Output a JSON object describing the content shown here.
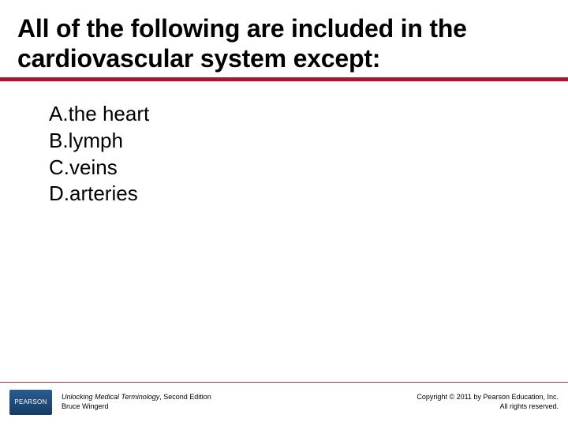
{
  "slide": {
    "title": "All of the following are included in the cardiovascular system except:",
    "title_fontsize": 32,
    "title_color": "#000000",
    "underline_color": "#9e1b32",
    "background_color": "#ffffff"
  },
  "answers": {
    "items": [
      {
        "label": "A.",
        "text": "the heart"
      },
      {
        "label": "B.",
        "text": "lymph"
      },
      {
        "label": "C.",
        "text": "veins"
      },
      {
        "label": "D.",
        "text": "arteries"
      }
    ],
    "fontsize": 26,
    "color": "#000000"
  },
  "footer": {
    "rule_color": "#5b2a2a",
    "logo_text": "PEARSON",
    "logo_bg_from": "#2b5b8f",
    "logo_bg_to": "#163c63",
    "book_title": "Unlocking Medical Terminology",
    "book_edition": ", Second Edition",
    "author": "Bruce Wingerd",
    "copyright_line1": "Copyright © 2011 by Pearson Education, Inc.",
    "copyright_line2": "All rights reserved.",
    "fontsize": 9
  }
}
